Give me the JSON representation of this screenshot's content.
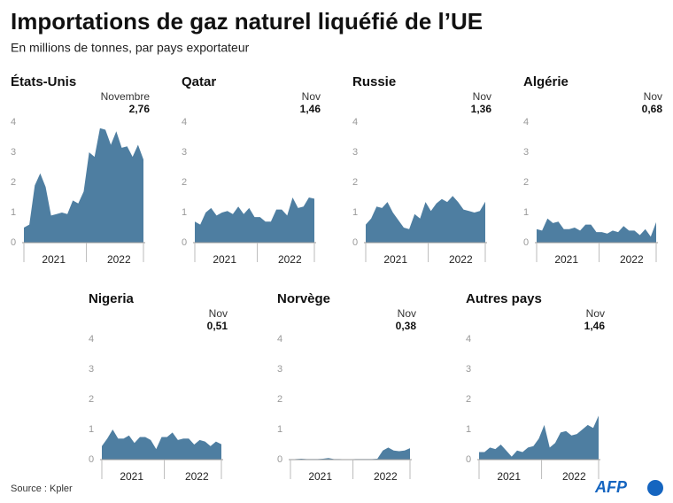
{
  "title": "Importations de gaz naturel liquéfié de l’UE",
  "subtitle": "En millions de tonnes, par pays exportateur",
  "source": "Source : Kpler",
  "credit": "AFP",
  "chart_data": [
    {
      "type": "area",
      "title": "États-Unis",
      "annotation": "Novembre",
      "color": "#4e7ea1",
      "ylim": [
        0,
        4
      ],
      "yticks": [
        0,
        1,
        2,
        3,
        4
      ],
      "grid": false,
      "categories": [
        null,
        null,
        null,
        null,
        null,
        "2021",
        null,
        null,
        null,
        null,
        null,
        null,
        null,
        null,
        null,
        null,
        null,
        "2022",
        null,
        null,
        null,
        null,
        null
      ],
      "values": [
        0.5,
        0.6,
        1.9,
        2.3,
        1.85,
        0.9,
        0.95,
        1.0,
        0.95,
        1.4,
        1.3,
        1.7,
        3.0,
        2.85,
        3.8,
        3.75,
        3.25,
        3.7,
        3.15,
        3.2,
        2.85,
        3.25,
        2.76
      ],
      "value_labels": [
        null,
        null,
        null,
        null,
        null,
        null,
        null,
        null,
        null,
        null,
        null,
        null,
        null,
        null,
        null,
        null,
        null,
        null,
        null,
        null,
        null,
        null,
        "2,76"
      ]
    },
    {
      "type": "area",
      "title": "Qatar",
      "annotation": "Nov",
      "color": "#4e7ea1",
      "ylim": [
        0,
        4
      ],
      "yticks": [
        0,
        1,
        2,
        3,
        4
      ],
      "grid": false,
      "categories": [
        null,
        null,
        null,
        null,
        null,
        "2021",
        null,
        null,
        null,
        null,
        null,
        null,
        null,
        null,
        null,
        null,
        null,
        "2022",
        null,
        null,
        null,
        null,
        null
      ],
      "values": [
        0.7,
        0.6,
        1.0,
        1.15,
        0.9,
        1.0,
        1.05,
        0.95,
        1.2,
        0.95,
        1.15,
        0.85,
        0.85,
        0.7,
        0.7,
        1.1,
        1.1,
        0.9,
        1.5,
        1.15,
        1.2,
        1.5,
        1.46
      ],
      "value_labels": [
        null,
        null,
        null,
        null,
        null,
        null,
        null,
        null,
        null,
        null,
        null,
        null,
        null,
        null,
        null,
        null,
        null,
        null,
        null,
        null,
        null,
        null,
        "1,46"
      ]
    },
    {
      "type": "area",
      "title": "Russie",
      "annotation": "Nov",
      "color": "#4e7ea1",
      "ylim": [
        0,
        4
      ],
      "yticks": [
        0,
        1,
        2,
        3,
        4
      ],
      "grid": false,
      "categories": [
        null,
        null,
        null,
        null,
        null,
        "2021",
        null,
        null,
        null,
        null,
        null,
        null,
        null,
        null,
        null,
        null,
        null,
        "2022",
        null,
        null,
        null,
        null,
        null
      ],
      "values": [
        0.6,
        0.8,
        1.2,
        1.15,
        1.35,
        1.0,
        0.75,
        0.5,
        0.45,
        0.95,
        0.8,
        1.35,
        1.05,
        1.3,
        1.45,
        1.35,
        1.55,
        1.35,
        1.1,
        1.05,
        1.0,
        1.05,
        1.36
      ],
      "value_labels": [
        null,
        null,
        null,
        null,
        null,
        null,
        null,
        null,
        null,
        null,
        null,
        null,
        null,
        null,
        null,
        null,
        null,
        null,
        null,
        null,
        null,
        null,
        "1,36"
      ]
    },
    {
      "type": "area",
      "title": "Algérie",
      "annotation": "Nov",
      "color": "#4e7ea1",
      "ylim": [
        0,
        4
      ],
      "yticks": [
        0,
        1,
        2,
        3,
        4
      ],
      "grid": false,
      "categories": [
        null,
        null,
        null,
        null,
        null,
        "2021",
        null,
        null,
        null,
        null,
        null,
        null,
        null,
        null,
        null,
        null,
        null,
        "2022",
        null,
        null,
        null,
        null,
        null
      ],
      "values": [
        0.45,
        0.4,
        0.8,
        0.65,
        0.7,
        0.45,
        0.45,
        0.5,
        0.4,
        0.6,
        0.6,
        0.35,
        0.35,
        0.3,
        0.4,
        0.35,
        0.55,
        0.4,
        0.4,
        0.25,
        0.45,
        0.2,
        0.68
      ],
      "value_labels": [
        null,
        null,
        null,
        null,
        null,
        null,
        null,
        null,
        null,
        null,
        null,
        null,
        null,
        null,
        null,
        null,
        null,
        null,
        null,
        null,
        null,
        null,
        "0,68"
      ]
    },
    {
      "type": "area",
      "title": "Nigeria",
      "annotation": "Nov",
      "color": "#4e7ea1",
      "ylim": [
        0,
        4
      ],
      "yticks": [
        0,
        1,
        2,
        3,
        4
      ],
      "grid": false,
      "categories": [
        null,
        null,
        null,
        null,
        null,
        "2021",
        null,
        null,
        null,
        null,
        null,
        null,
        null,
        null,
        null,
        null,
        null,
        "2022",
        null,
        null,
        null,
        null,
        null
      ],
      "values": [
        0.45,
        0.7,
        1.0,
        0.7,
        0.7,
        0.8,
        0.55,
        0.75,
        0.75,
        0.65,
        0.35,
        0.75,
        0.75,
        0.9,
        0.65,
        0.7,
        0.7,
        0.5,
        0.65,
        0.6,
        0.45,
        0.6,
        0.51
      ],
      "value_labels": [
        null,
        null,
        null,
        null,
        null,
        null,
        null,
        null,
        null,
        null,
        null,
        null,
        null,
        null,
        null,
        null,
        null,
        null,
        null,
        null,
        null,
        null,
        "0,51"
      ]
    },
    {
      "type": "area",
      "title": "Norvège",
      "annotation": "Nov",
      "color": "#4e7ea1",
      "ylim": [
        0,
        4
      ],
      "yticks": [
        0,
        1,
        2,
        3,
        4
      ],
      "grid": false,
      "categories": [
        null,
        null,
        null,
        null,
        null,
        "2021",
        null,
        null,
        null,
        null,
        null,
        null,
        null,
        null,
        null,
        null,
        null,
        "2022",
        null,
        null,
        null,
        null,
        null
      ],
      "values": [
        0.0,
        0.02,
        0.03,
        0.02,
        0.02,
        0.02,
        0.03,
        0.05,
        0.02,
        0.02,
        0.01,
        0.01,
        0.02,
        0.02,
        0.02,
        0.02,
        0.03,
        0.3,
        0.4,
        0.3,
        0.28,
        0.3,
        0.38
      ],
      "value_labels": [
        null,
        null,
        null,
        null,
        null,
        null,
        null,
        null,
        null,
        null,
        null,
        null,
        null,
        null,
        null,
        null,
        null,
        null,
        null,
        null,
        null,
        null,
        "0,38"
      ]
    },
    {
      "type": "area",
      "title": "Autres pays",
      "annotation": "Nov",
      "color": "#4e7ea1",
      "ylim": [
        0,
        4
      ],
      "yticks": [
        0,
        1,
        2,
        3,
        4
      ],
      "grid": false,
      "categories": [
        null,
        null,
        null,
        null,
        null,
        "2021",
        null,
        null,
        null,
        null,
        null,
        null,
        null,
        null,
        null,
        null,
        null,
        "2022",
        null,
        null,
        null,
        null,
        null
      ],
      "values": [
        0.25,
        0.25,
        0.4,
        0.35,
        0.5,
        0.3,
        0.1,
        0.3,
        0.25,
        0.4,
        0.45,
        0.7,
        1.15,
        0.4,
        0.55,
        0.9,
        0.95,
        0.8,
        0.85,
        1.0,
        1.15,
        1.05,
        1.46
      ],
      "value_labels": [
        null,
        null,
        null,
        null,
        null,
        null,
        null,
        null,
        null,
        null,
        null,
        null,
        null,
        null,
        null,
        null,
        null,
        null,
        null,
        null,
        null,
        null,
        "1,46"
      ]
    }
  ]
}
